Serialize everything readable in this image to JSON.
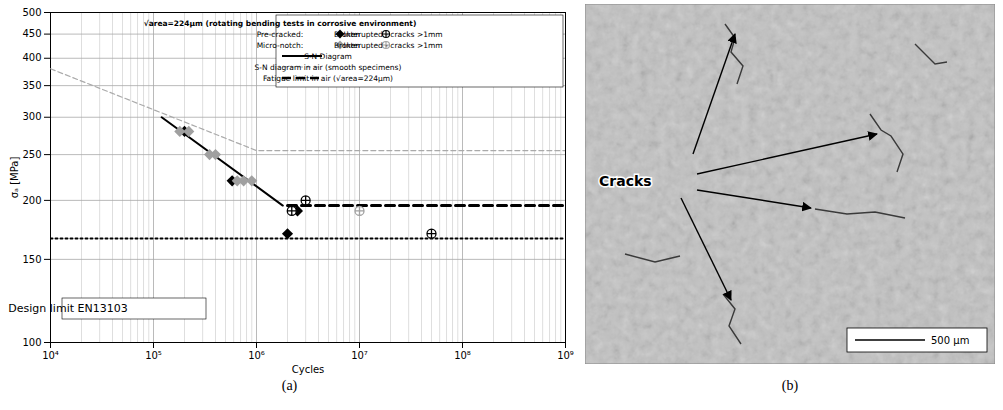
{
  "panels": [
    "(a)",
    "(b)"
  ],
  "chart_data": {
    "type": "scatter",
    "x_label": "Cycles",
    "y_label": "σₐ [MPa]",
    "log": true,
    "grid": true,
    "legend": "top-right",
    "legend_title": "√area=224µm (rotating bending tests in corrosive environment)",
    "xlim": [
      10000,
      1000000000
    ],
    "xticks": [
      {
        "value": 10000,
        "label": "10⁴"
      },
      {
        "value": 100000,
        "label": "10⁵"
      },
      {
        "value": 1000000,
        "label": "10⁶"
      },
      {
        "value": 10000000,
        "label": "10⁷"
      },
      {
        "value": 100000000,
        "label": "10⁸"
      },
      {
        "value": 1000000000,
        "label": "10⁹"
      }
    ],
    "ylim": [
      100,
      500
    ],
    "yticks": [
      100,
      150,
      200,
      250,
      300,
      350,
      400,
      450,
      500
    ],
    "series": [
      {
        "name": "Broken",
        "group": "Pre-cracked:",
        "type": "scatter",
        "marker": "diamond",
        "color": "#000000",
        "x": [
          200000,
          580000,
          2000000,
          2500000
        ],
        "values": [
          280,
          220,
          170,
          190
        ]
      },
      {
        "name": "Interupted - cracks >1mm",
        "group": "Pre-cracked:",
        "type": "scatter",
        "marker": "circle-cross",
        "color": "#000000",
        "x": [
          2200000,
          3000000,
          50000000
        ],
        "values": [
          190,
          200,
          170
        ]
      },
      {
        "name": "Broken",
        "group": "Micro-notch:",
        "type": "scatter",
        "marker": "diamond",
        "color": "#a0a0a0",
        "x": [
          180000,
          220000,
          350000,
          400000,
          650000,
          750000,
          900000
        ],
        "values": [
          280,
          280,
          250,
          250,
          220,
          220,
          220
        ]
      },
      {
        "name": "Interupted - cracks >1mm",
        "group": "Micro-notch:",
        "type": "scatter",
        "marker": "circle-cross",
        "color": "#a0a0a0",
        "x": [
          10000000
        ],
        "values": [
          190
        ]
      },
      {
        "name": "S-N Diagram",
        "type": "line",
        "line_style": "solid",
        "color": "#000000",
        "x": [
          120000,
          1800000
        ],
        "values": [
          300,
          195
        ]
      },
      {
        "name": "S-N diagram in air (smooth specimens)",
        "type": "line",
        "line_style": "dashed",
        "color": "#aaaaaa",
        "x": [
          10000,
          1000000,
          1000000000
        ],
        "values": [
          380,
          255,
          255
        ]
      },
      {
        "name": "Fatigue limit in air (√area=224µm)",
        "type": "line",
        "line_style": "bold_dashed",
        "color": "#000000",
        "x": [
          2000000,
          1000000000
        ],
        "values": [
          195,
          195
        ]
      }
    ],
    "annotation": {
      "text": "Design limit EN13103",
      "type": "line",
      "line_style": "dotted",
      "color": "#000000",
      "x": [
        10000,
        1000000000
      ],
      "values": [
        166,
        166
      ]
    }
  },
  "micrograph": {
    "label": "Cracks",
    "scale_bar": "500 µm"
  }
}
